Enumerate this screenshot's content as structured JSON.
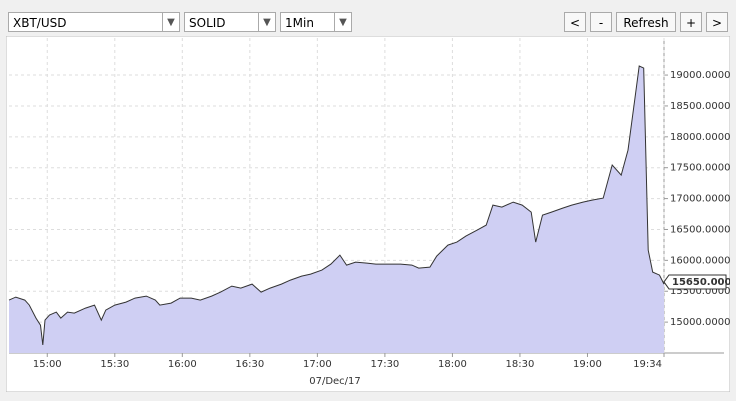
{
  "toolbar": {
    "symbol": "XBT/USD",
    "style": "SOLID",
    "interval": "1Min",
    "buttons": [
      "<",
      "-",
      "Refresh",
      "+",
      ">"
    ]
  },
  "chart_data": {
    "type": "area",
    "x_label": "07/Dec/17",
    "grid": true,
    "xlim": [
      "14:43",
      "19:34"
    ],
    "xticks": [
      "15:00",
      "15:30",
      "16:00",
      "16:30",
      "17:00",
      "17:30",
      "18:00",
      "18:30",
      "19:00",
      "19:34"
    ],
    "ylim": [
      14500,
      19600
    ],
    "yticks": [
      {
        "value": 15000,
        "label": "15000.0000"
      },
      {
        "value": 15500,
        "label": "15500.0000"
      },
      {
        "value": 16000,
        "label": "16000.0000"
      },
      {
        "value": 16500,
        "label": "16500.0000"
      },
      {
        "value": 17000,
        "label": "17000.0000"
      },
      {
        "value": 17500,
        "label": "17500.0000"
      },
      {
        "value": 18000,
        "label": "18000.0000"
      },
      {
        "value": 18500,
        "label": "18500.0000"
      },
      {
        "value": 19000,
        "label": "19000.0000"
      }
    ],
    "last_price": {
      "value": 15650,
      "label": "15650.0000"
    },
    "series": [
      {
        "name": "XBT/USD",
        "color": "#333333",
        "fill": "#cfcff3",
        "x": [
          "14:43",
          "14:46",
          "14:50",
          "14:52",
          "14:55",
          "14:57",
          "14:58",
          "14:59",
          "15:01",
          "15:04",
          "15:06",
          "15:09",
          "15:12",
          "15:17",
          "15:21",
          "15:24",
          "15:26",
          "15:30",
          "15:35",
          "15:39",
          "15:44",
          "15:48",
          "15:50",
          "15:55",
          "15:59",
          "16:04",
          "16:08",
          "16:13",
          "16:17",
          "16:22",
          "16:26",
          "16:31",
          "16:35",
          "16:39",
          "16:44",
          "16:48",
          "16:53",
          "16:57",
          "17:02",
          "17:06",
          "17:10",
          "17:13",
          "17:17",
          "17:22",
          "17:26",
          "17:31",
          "17:37",
          "17:42",
          "17:45",
          "17:50",
          "17:53",
          "17:58",
          "18:02",
          "18:06",
          "18:11",
          "18:15",
          "18:18",
          "18:22",
          "18:27",
          "18:31",
          "18:35",
          "18:37",
          "18:40",
          "18:44",
          "18:49",
          "18:53",
          "18:58",
          "19:02",
          "19:07",
          "19:11",
          "19:15",
          "19:18",
          "19:21",
          "19:23",
          "19:25",
          "19:27",
          "19:29",
          "19:32",
          "19:34"
        ],
        "values": [
          15357,
          15405,
          15357,
          15275,
          15065,
          14950,
          14630,
          15032,
          15113,
          15162,
          15065,
          15162,
          15146,
          15227,
          15275,
          15032,
          15194,
          15275,
          15324,
          15389,
          15421,
          15357,
          15275,
          15308,
          15389,
          15389,
          15357,
          15421,
          15486,
          15583,
          15551,
          15615,
          15486,
          15551,
          15615,
          15680,
          15745,
          15777,
          15842,
          15939,
          16085,
          15923,
          15972,
          15955,
          15939,
          15939,
          15939,
          15923,
          15874,
          15891,
          16069,
          16247,
          16296,
          16393,
          16490,
          16571,
          16895,
          16862,
          16943,
          16895,
          16781,
          16296,
          16733,
          16781,
          16846,
          16895,
          16943,
          16976,
          17008,
          17543,
          17381,
          17785,
          18595,
          19146,
          19113,
          16166,
          15810,
          15761,
          15615
        ]
      }
    ]
  }
}
